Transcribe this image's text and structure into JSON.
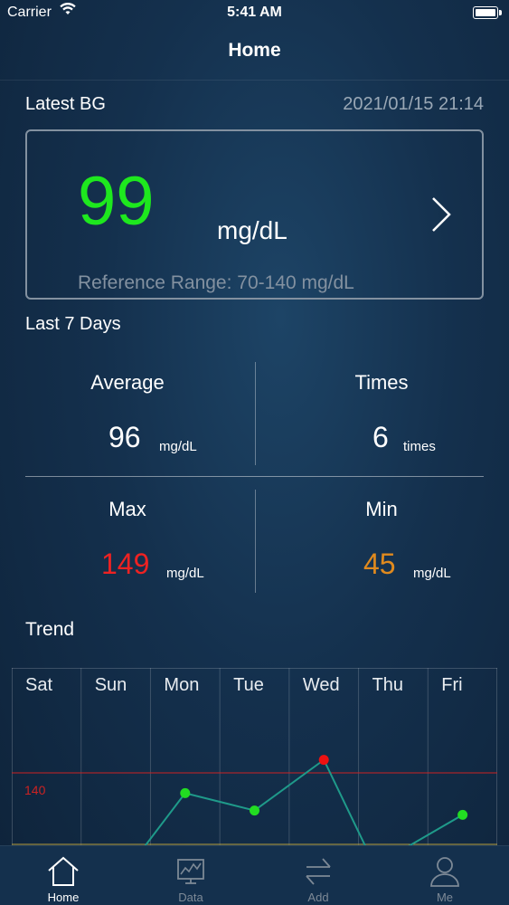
{
  "status_bar": {
    "carrier": "Carrier",
    "time": "5:41 AM"
  },
  "nav": {
    "title": "Home"
  },
  "latest": {
    "label": "Latest BG",
    "datetime": "2021/01/15 21:14",
    "value": "99",
    "unit": "mg/dL",
    "reference": "Reference Range: 70-140 mg/dL",
    "value_color": "#1ee81e"
  },
  "last7": {
    "label": "Last 7 Days",
    "average": {
      "title": "Average",
      "value": "96",
      "unit": "mg/dL"
    },
    "times": {
      "title": "Times",
      "value": "6",
      "unit": "times"
    },
    "max": {
      "title": "Max",
      "value": "149",
      "unit": "mg/dL",
      "color": "#ee2222"
    },
    "min": {
      "title": "Min",
      "value": "45",
      "unit": "mg/dL",
      "color": "#e08a1e"
    }
  },
  "trend": {
    "label": "Trend"
  },
  "chart_data": {
    "type": "line",
    "categories": [
      "Sat",
      "Sun",
      "Mon",
      "Tue",
      "Wed",
      "Thu",
      "Fri"
    ],
    "reference_line": {
      "value": 140,
      "label": "140",
      "color": "#cc2222"
    },
    "lower_line_color": "#b8a040",
    "points": [
      {
        "day_index": 2,
        "value": 126,
        "color": "#22dd22"
      },
      {
        "day_index": 3,
        "value": 114,
        "color": "#22dd22"
      },
      {
        "day_index": 4,
        "value": 149,
        "color": "#ee1111"
      },
      {
        "day_index": 6,
        "value": 111,
        "color": "#22dd22"
      }
    ],
    "line_color": "#1f9a8a",
    "ylim": [
      90,
      180
    ]
  },
  "tabbar": {
    "items": [
      {
        "label": "Home",
        "icon": "home-icon"
      },
      {
        "label": "Data",
        "icon": "chart-monitor-icon"
      },
      {
        "label": "Add",
        "icon": "transfer-arrows-icon"
      },
      {
        "label": "Me",
        "icon": "user-icon"
      }
    ]
  }
}
